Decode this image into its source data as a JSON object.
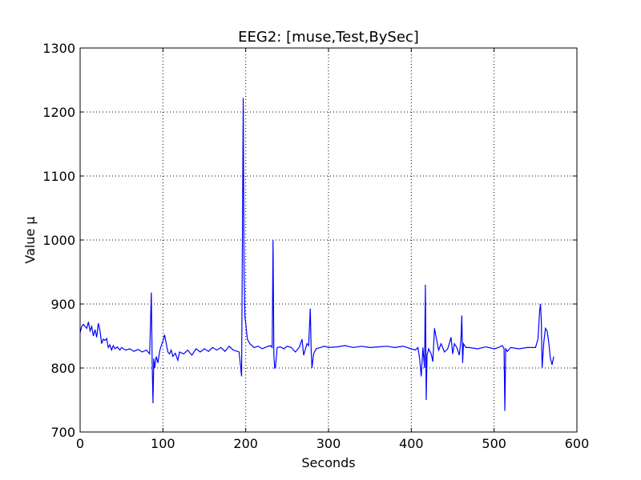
{
  "chart_data": {
    "type": "line",
    "title": "EEG2: [muse,Test,BySec]",
    "x_label": "Seconds",
    "y_label": "Value µ",
    "xlim": [
      0,
      600
    ],
    "ylim": [
      700,
      1300
    ],
    "xticks": [
      0,
      100,
      200,
      300,
      400,
      500,
      600
    ],
    "yticks": [
      700,
      800,
      900,
      1000,
      1100,
      1200,
      1300
    ],
    "grid": true,
    "x": [
      0,
      2,
      4,
      6,
      8,
      10,
      12,
      14,
      16,
      18,
      20,
      22,
      24,
      26,
      28,
      30,
      32,
      34,
      36,
      38,
      40,
      42,
      45,
      48,
      50,
      55,
      60,
      65,
      70,
      75,
      80,
      84,
      86,
      87,
      88,
      89,
      90,
      92,
      94,
      96,
      98,
      100,
      102,
      104,
      106,
      108,
      110,
      112,
      115,
      118,
      120,
      125,
      130,
      135,
      140,
      145,
      150,
      155,
      160,
      165,
      170,
      175,
      180,
      185,
      190,
      192,
      194,
      195,
      196,
      197,
      198,
      199,
      200,
      202,
      205,
      210,
      215,
      220,
      225,
      230,
      232,
      233,
      234,
      235,
      236,
      238,
      242,
      246,
      250,
      255,
      260,
      265,
      268,
      270,
      274,
      276,
      278,
      279,
      280,
      282,
      285,
      290,
      295,
      300,
      310,
      320,
      330,
      340,
      350,
      360,
      370,
      380,
      390,
      400,
      405,
      408,
      410,
      412,
      414,
      416,
      417,
      418,
      419,
      421,
      424,
      426,
      428,
      430,
      433,
      436,
      440,
      444,
      448,
      450,
      452,
      455,
      458,
      460,
      461,
      462,
      463,
      466,
      470,
      480,
      490,
      500,
      505,
      510,
      512,
      513,
      514,
      516,
      520,
      530,
      540,
      550,
      553,
      555,
      556,
      557,
      558,
      560,
      562,
      564,
      566,
      568,
      570,
      572
    ],
    "series": [
      {
        "name": "EEG2",
        "color": "#0000ff",
        "values": [
          855,
          865,
          868,
          865,
          862,
          872,
          858,
          865,
          850,
          860,
          848,
          870,
          858,
          838,
          845,
          843,
          846,
          832,
          836,
          828,
          835,
          830,
          833,
          828,
          832,
          828,
          830,
          826,
          829,
          825,
          828,
          822,
          918,
          810,
          745,
          815,
          800,
          818,
          808,
          826,
          835,
          842,
          852,
          838,
          825,
          822,
          828,
          818,
          823,
          812,
          825,
          822,
          828,
          820,
          830,
          825,
          830,
          826,
          832,
          828,
          832,
          826,
          834,
          828,
          826,
          825,
          800,
          787,
          1000,
          1222,
          950,
          880,
          870,
          845,
          838,
          832,
          834,
          830,
          833,
          835,
          832,
          1000,
          820,
          800,
          802,
          832,
          833,
          830,
          834,
          832,
          825,
          833,
          845,
          820,
          838,
          835,
          893,
          830,
          800,
          822,
          830,
          832,
          834,
          832,
          833,
          835,
          832,
          834,
          832,
          833,
          834,
          832,
          834,
          830,
          828,
          832,
          815,
          787,
          832,
          800,
          930,
          750,
          820,
          830,
          822,
          810,
          862,
          848,
          828,
          838,
          825,
          830,
          848,
          822,
          838,
          832,
          820,
          845,
          882,
          808,
          838,
          832,
          832,
          830,
          833,
          830,
          832,
          835,
          830,
          733,
          830,
          826,
          832,
          830,
          832,
          832,
          845,
          890,
          900,
          875,
          800,
          840,
          862,
          858,
          840,
          815,
          805,
          818
        ]
      }
    ]
  }
}
